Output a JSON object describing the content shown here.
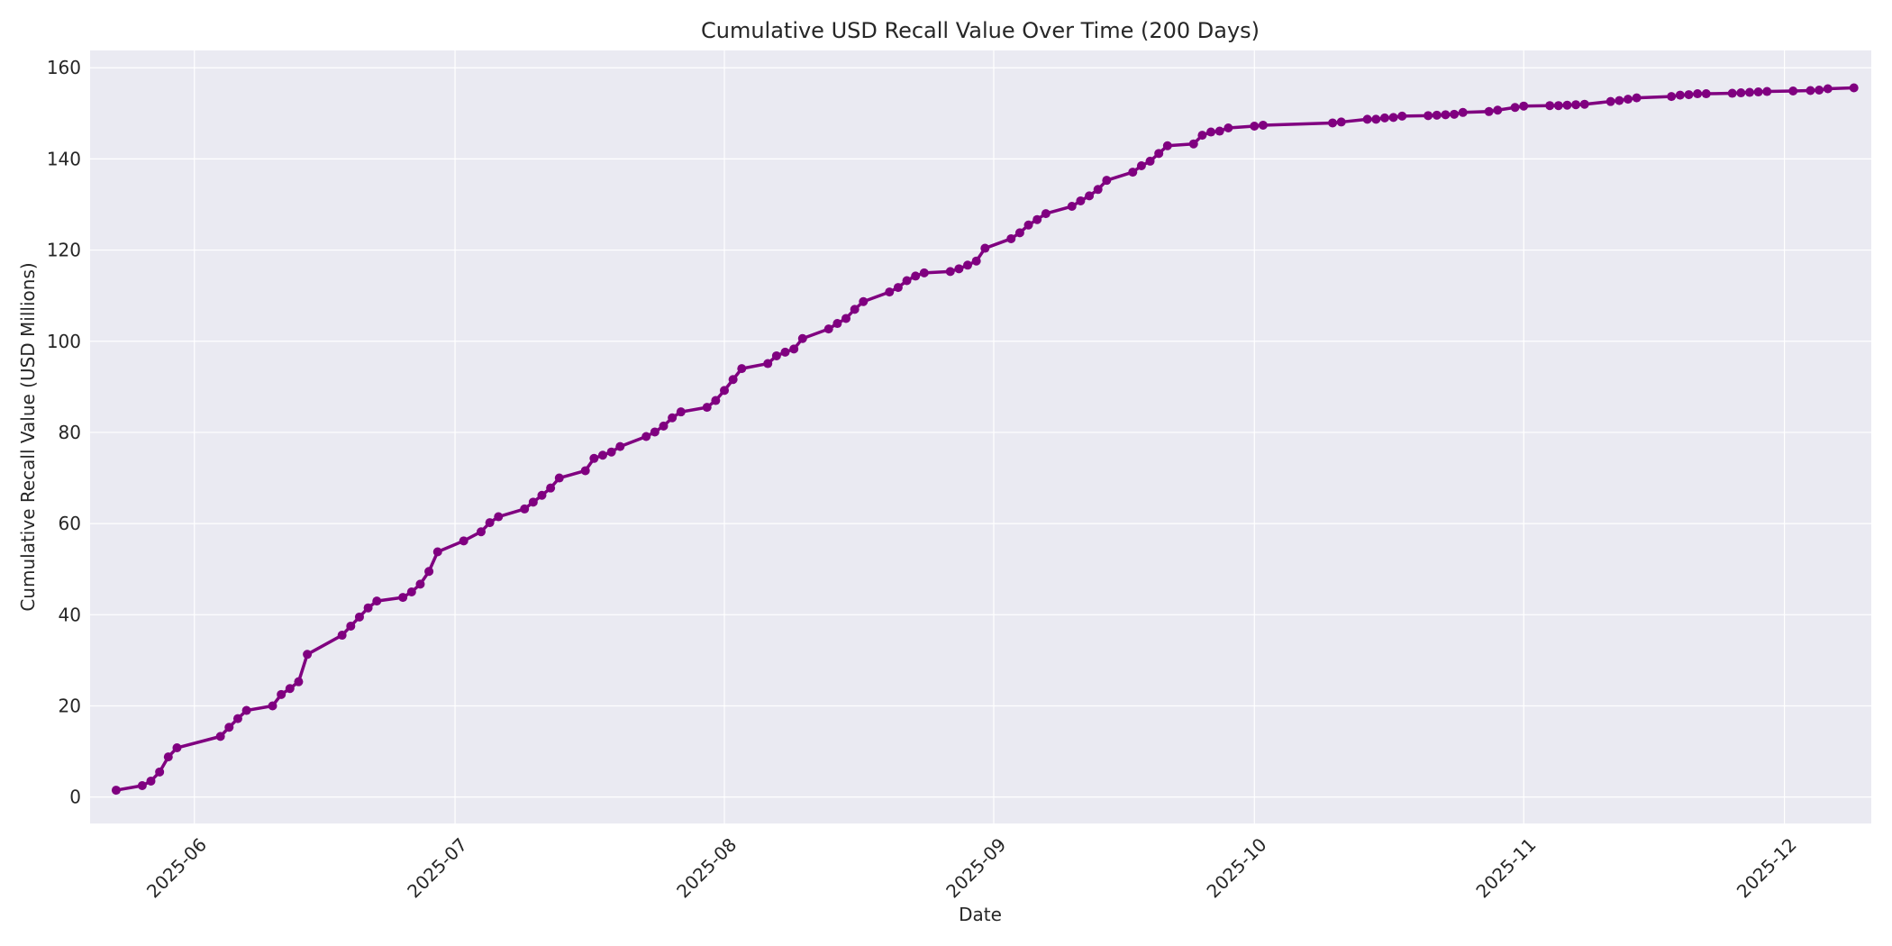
{
  "chart_data": {
    "type": "line",
    "title": "Cumulative USD Recall Value Over Time (200 Days)",
    "xlabel": "Date",
    "ylabel": "Cumulative Recall Value (USD Millions)",
    "xlim": [
      "2025-05-20",
      "2025-12-11"
    ],
    "ylim": [
      -5.8,
      163.8
    ],
    "grid": true,
    "legend": "none",
    "colors": {
      "series": "#800080",
      "plot_background": "#EAEAF2",
      "grid": "#FFFFFF"
    },
    "x_ticks": [
      {
        "value": "2025-06-01",
        "label": "2025-06"
      },
      {
        "value": "2025-07-01",
        "label": "2025-07"
      },
      {
        "value": "2025-08-01",
        "label": "2025-08"
      },
      {
        "value": "2025-09-01",
        "label": "2025-09"
      },
      {
        "value": "2025-10-01",
        "label": "2025-10"
      },
      {
        "value": "2025-11-01",
        "label": "2025-11"
      },
      {
        "value": "2025-12-01",
        "label": "2025-12"
      }
    ],
    "y_ticks": [
      0,
      20,
      40,
      60,
      80,
      100,
      120,
      140,
      160
    ],
    "series": [
      {
        "x": [
          "2025-05-23",
          "2025-05-26",
          "2025-05-27",
          "2025-05-28",
          "2025-05-29",
          "2025-05-30",
          "2025-06-04",
          "2025-06-05",
          "2025-06-06",
          "2025-06-07",
          "2025-06-10",
          "2025-06-11",
          "2025-06-12",
          "2025-06-13",
          "2025-06-14",
          "2025-06-18",
          "2025-06-19",
          "2025-06-20",
          "2025-06-21",
          "2025-06-22",
          "2025-06-25",
          "2025-06-26",
          "2025-06-27",
          "2025-06-28",
          "2025-06-29",
          "2025-07-02",
          "2025-07-04",
          "2025-07-05",
          "2025-07-06",
          "2025-07-09",
          "2025-07-10",
          "2025-07-11",
          "2025-07-12",
          "2025-07-13",
          "2025-07-16",
          "2025-07-17",
          "2025-07-18",
          "2025-07-19",
          "2025-07-20",
          "2025-07-23",
          "2025-07-24",
          "2025-07-25",
          "2025-07-26",
          "2025-07-27",
          "2025-07-30",
          "2025-07-31",
          "2025-08-01",
          "2025-08-02",
          "2025-08-03",
          "2025-08-06",
          "2025-08-07",
          "2025-08-08",
          "2025-08-09",
          "2025-08-10",
          "2025-08-13",
          "2025-08-14",
          "2025-08-15",
          "2025-08-16",
          "2025-08-17",
          "2025-08-20",
          "2025-08-21",
          "2025-08-22",
          "2025-08-23",
          "2025-08-24",
          "2025-08-27",
          "2025-08-28",
          "2025-08-29",
          "2025-08-30",
          "2025-08-31",
          "2025-09-03",
          "2025-09-04",
          "2025-09-05",
          "2025-09-06",
          "2025-09-07",
          "2025-09-10",
          "2025-09-11",
          "2025-09-12",
          "2025-09-13",
          "2025-09-14",
          "2025-09-17",
          "2025-09-18",
          "2025-09-19",
          "2025-09-20",
          "2025-09-21",
          "2025-09-24",
          "2025-09-25",
          "2025-09-26",
          "2025-09-27",
          "2025-09-28",
          "2025-10-01",
          "2025-10-02",
          "2025-10-10",
          "2025-10-11",
          "2025-10-14",
          "2025-10-15",
          "2025-10-16",
          "2025-10-17",
          "2025-10-18",
          "2025-10-21",
          "2025-10-22",
          "2025-10-23",
          "2025-10-24",
          "2025-10-25",
          "2025-10-28",
          "2025-10-29",
          "2025-10-31",
          "2025-11-01",
          "2025-11-04",
          "2025-11-05",
          "2025-11-06",
          "2025-11-07",
          "2025-11-08",
          "2025-11-11",
          "2025-11-12",
          "2025-11-13",
          "2025-11-14",
          "2025-11-18",
          "2025-11-19",
          "2025-11-20",
          "2025-11-21",
          "2025-11-22",
          "2025-11-25",
          "2025-11-26",
          "2025-11-27",
          "2025-11-28",
          "2025-11-29",
          "2025-12-02",
          "2025-12-04",
          "2025-12-05",
          "2025-12-06",
          "2025-12-09"
        ],
        "y": [
          1.5,
          2.5,
          3.5,
          5.5,
          8.8,
          10.8,
          13.3,
          15.3,
          17.2,
          19.0,
          20.0,
          22.5,
          23.8,
          25.3,
          31.3,
          35.5,
          37.5,
          39.5,
          41.5,
          43.0,
          43.8,
          45.0,
          46.7,
          49.5,
          53.8,
          56.2,
          58.2,
          60.2,
          61.5,
          63.2,
          64.7,
          66.2,
          67.8,
          70.0,
          71.6,
          74.3,
          75.0,
          75.7,
          76.9,
          79.1,
          80.1,
          81.4,
          83.2,
          84.5,
          85.5,
          87.0,
          89.2,
          91.6,
          94.0,
          95.1,
          96.8,
          97.6,
          98.3,
          100.6,
          102.7,
          103.9,
          105.0,
          107.0,
          108.7,
          110.8,
          111.8,
          113.3,
          114.3,
          115.0,
          115.3,
          115.9,
          116.7,
          117.6,
          120.4,
          122.5,
          123.8,
          125.5,
          126.7,
          128.0,
          129.6,
          130.8,
          131.9,
          133.3,
          135.3,
          137.1,
          138.5,
          139.5,
          141.2,
          142.9,
          143.3,
          145.2,
          145.9,
          146.1,
          146.8,
          147.2,
          147.4,
          147.9,
          148.1,
          148.7,
          148.7,
          149.0,
          149.1,
          149.4,
          149.5,
          149.6,
          149.7,
          149.8,
          150.2,
          150.4,
          150.7,
          151.3,
          151.6,
          151.7,
          151.7,
          151.8,
          151.9,
          152.0,
          152.6,
          152.8,
          153.1,
          153.4,
          153.7,
          154.0,
          154.1,
          154.3,
          154.3,
          154.4,
          154.5,
          154.6,
          154.7,
          154.8,
          154.9,
          155.0,
          155.1,
          155.4,
          155.6
        ]
      }
    ]
  }
}
